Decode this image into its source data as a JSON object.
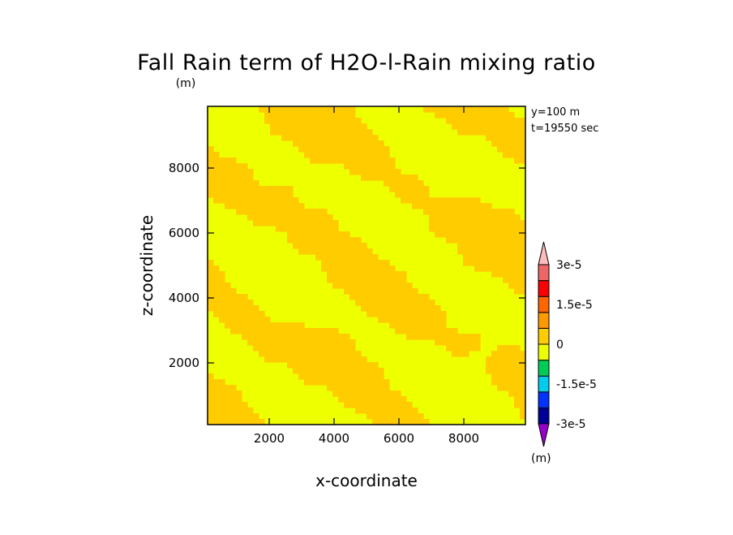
{
  "chart_data": {
    "type": "heatmap",
    "title": "Fall Rain term of H2O-l-Rain mixing ratio",
    "y_unit_label": "(m)",
    "xlabel": "x-coordinate",
    "ylabel": "z-coordinate",
    "xlim": [
      100,
      9900
    ],
    "ylim": [
      100,
      9900
    ],
    "x_ticks": [
      2000,
      4000,
      6000,
      8000
    ],
    "y_ticks": [
      2000,
      4000,
      6000,
      8000
    ],
    "x_tick_labels": [
      "2000",
      "4000",
      "6000",
      "8000"
    ],
    "y_tick_labels": [
      "2000",
      "4000",
      "6000",
      "8000"
    ],
    "info_lines": [
      "y=100  m",
      "t=19550 sec"
    ],
    "fill_colors": {
      "zero_to_positive": "#ffcc00",
      "near_zero_negative": "#eeff00"
    },
    "colorbar": {
      "unit_label": "(m)",
      "levels": [
        -3e-05,
        -2.25e-05,
        -1.5e-05,
        -7.5e-06,
        0,
        7.5e-06,
        1.5e-05,
        2.25e-05,
        3e-05
      ],
      "colors": [
        "#9900cc",
        "#000099",
        "#0033ff",
        "#00ccee",
        "#00cc55",
        "#eeff00",
        "#ffcc00",
        "#ff9900",
        "#ff6600",
        "#ff0000",
        "#ee6666",
        "#ffbbbb"
      ],
      "tick_labels": [
        "3e-5",
        "1.5e-5",
        "0",
        "-1.5e-5",
        "-3e-5"
      ],
      "tick_values": [
        3e-05,
        1.5e-05,
        0,
        -1.5e-05,
        -3e-05
      ]
    }
  }
}
